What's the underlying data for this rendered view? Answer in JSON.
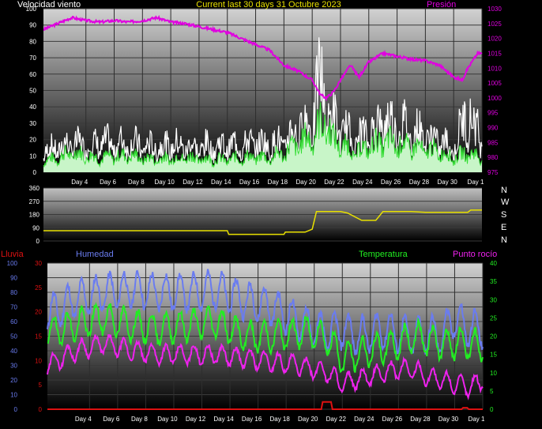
{
  "header": {
    "wind_label": "Velocidad viento",
    "title": "Current last 30 days 31 Octubre 2023",
    "pressure_label": "Presión"
  },
  "footer_labels": {
    "rain": "Lluvia",
    "humidity": "Humedad",
    "temperature": "Temperatura",
    "dewpoint": "Punto rocío"
  },
  "compass": [
    "N",
    "W",
    "S",
    "E",
    "N"
  ],
  "colors": {
    "pressure": "#e000e0",
    "gust": "#ffffff",
    "wind": "#33dd33",
    "wind_fill": "#c8f5c8",
    "direction": "#e8e000",
    "humidity": "#6a7cf0",
    "temperature": "#22ee22",
    "dewpoint": "#ee22ee",
    "rain": "#dd1111",
    "title": "#e8e000"
  },
  "chart_data": [
    {
      "type": "line",
      "title": "Current last 30 days 31 Octubre 2023",
      "x_ticks": [
        "Day 4",
        "Day 6",
        "Day 8",
        "Day 10",
        "Day 12",
        "Day 14",
        "Day 16",
        "Day 18",
        "Day 20",
        "Day 22",
        "Day 24",
        "Day 26",
        "Day 28",
        "Day 30",
        "Day 1"
      ],
      "x_tick_days": [
        3,
        5,
        7,
        9,
        11,
        13,
        15,
        17,
        19,
        21,
        23,
        25,
        27,
        29,
        31
      ],
      "xlim_days": [
        0,
        31
      ],
      "ylim_left": [
        0,
        100
      ],
      "y_ticks_left": [
        "0",
        "10",
        "20",
        "30",
        "40",
        "50",
        "60",
        "70",
        "80",
        "90",
        "100"
      ],
      "ylim_right": [
        975,
        1030
      ],
      "y_ticks_right": [
        "975",
        "980",
        "985",
        "990",
        "995",
        "1000",
        "1005",
        "1010",
        "1015",
        "1020",
        "1025",
        "1030"
      ],
      "series": [
        {
          "name": "Presión",
          "axis": "right",
          "points": [
            [
              0,
              1023
            ],
            [
              1,
              1025
            ],
            [
              2,
              1027
            ],
            [
              3,
              1026
            ],
            [
              4,
              1025.5
            ],
            [
              5,
              1026
            ],
            [
              6,
              1025.5
            ],
            [
              7,
              1026
            ],
            [
              8,
              1027
            ],
            [
              9,
              1025.5
            ],
            [
              10,
              1025
            ],
            [
              11,
              1024
            ],
            [
              12,
              1023
            ],
            [
              13,
              1022
            ],
            [
              14,
              1020
            ],
            [
              15,
              1018
            ],
            [
              16,
              1016
            ],
            [
              17,
              1011
            ],
            [
              18,
              1009
            ],
            [
              19,
              1006
            ],
            [
              19.6,
              1001
            ],
            [
              20,
              1000
            ],
            [
              20.5,
              1002
            ],
            [
              21,
              1006
            ],
            [
              21.7,
              1011
            ],
            [
              22.3,
              1007
            ],
            [
              23,
              1012
            ],
            [
              24,
              1015
            ],
            [
              25,
              1014
            ],
            [
              26,
              1013
            ],
            [
              27,
              1012.5
            ],
            [
              28,
              1011
            ],
            [
              29,
              1007
            ],
            [
              29.6,
              1006
            ],
            [
              30,
              1010
            ],
            [
              30.7,
              1015
            ],
            [
              31,
              1015
            ]
          ]
        },
        {
          "name": "Velocidad viento",
          "axis": "left",
          "points": [
            [
              0,
              8
            ],
            [
              1,
              10
            ],
            [
              2,
              14
            ],
            [
              3,
              12
            ],
            [
              4,
              10
            ],
            [
              5,
              11
            ],
            [
              6,
              12
            ],
            [
              7,
              10
            ],
            [
              8,
              9
            ],
            [
              9,
              10
            ],
            [
              10,
              11
            ],
            [
              11,
              10
            ],
            [
              12,
              9
            ],
            [
              13,
              9
            ],
            [
              14,
              10
            ],
            [
              15,
              11
            ],
            [
              16,
              10
            ],
            [
              17,
              14
            ],
            [
              18,
              20
            ],
            [
              19,
              25
            ],
            [
              20,
              38
            ],
            [
              20.5,
              22
            ],
            [
              21,
              20
            ],
            [
              22,
              14
            ],
            [
              23,
              18
            ],
            [
              24,
              22
            ],
            [
              25,
              20
            ],
            [
              26,
              18
            ],
            [
              27,
              16
            ],
            [
              28,
              15
            ],
            [
              29,
              10
            ],
            [
              30,
              14
            ],
            [
              31,
              10
            ]
          ]
        },
        {
          "name": "gust",
          "axis": "left",
          "points": [
            [
              0,
              20
            ],
            [
              1,
              24
            ],
            [
              2,
              27
            ],
            [
              3,
              25
            ],
            [
              4,
              28
            ],
            [
              5,
              27
            ],
            [
              6,
              28
            ],
            [
              7,
              25
            ],
            [
              8,
              24
            ],
            [
              9,
              27
            ],
            [
              10,
              25
            ],
            [
              11,
              24
            ],
            [
              12,
              25
            ],
            [
              13,
              26
            ],
            [
              14,
              27
            ],
            [
              15,
              28
            ],
            [
              16,
              26
            ],
            [
              17,
              30
            ],
            [
              18,
              42
            ],
            [
              19,
              48
            ],
            [
              19.6,
              90
            ],
            [
              20,
              55
            ],
            [
              21,
              42
            ],
            [
              22,
              30
            ],
            [
              23,
              38
            ],
            [
              24,
              50
            ],
            [
              25,
              45
            ],
            [
              26,
              40
            ],
            [
              27,
              35
            ],
            [
              28,
              30
            ],
            [
              29,
              22
            ],
            [
              30,
              60
            ],
            [
              31,
              30
            ]
          ]
        }
      ]
    },
    {
      "type": "line",
      "ylim": [
        0,
        360
      ],
      "y_ticks": [
        "0",
        "90",
        "180",
        "270",
        "360"
      ],
      "xlim_days": [
        0,
        31
      ],
      "series": [
        {
          "name": "direction",
          "points": [
            [
              0,
              70
            ],
            [
              13,
              70
            ],
            [
              13.1,
              45
            ],
            [
              17,
              45
            ],
            [
              17.1,
              60
            ],
            [
              18.5,
              60
            ],
            [
              19,
              80
            ],
            [
              19.3,
              200
            ],
            [
              21,
              200
            ],
            [
              21.5,
              190
            ],
            [
              22.5,
              140
            ],
            [
              23.5,
              140
            ],
            [
              24,
              200
            ],
            [
              26,
              200
            ],
            [
              27,
              195
            ],
            [
              30,
              195
            ],
            [
              30.2,
              210
            ],
            [
              31,
              210
            ]
          ]
        }
      ]
    },
    {
      "type": "line",
      "x_ticks": [
        "Day 4",
        "Day 6",
        "Day 8",
        "Day 10",
        "Day 12",
        "Day 14",
        "Day 16",
        "Day 18",
        "Day 20",
        "Day 22",
        "Day 24",
        "Day 26",
        "Day 28",
        "Day 30",
        "Day 1"
      ],
      "x_tick_days": [
        3,
        5,
        7,
        9,
        11,
        13,
        15,
        17,
        19,
        21,
        23,
        25,
        27,
        29,
        31
      ],
      "xlim_days": [
        0,
        31
      ],
      "ylim_humidity": [
        0,
        100
      ],
      "y_ticks_humidity": [
        "0",
        "10",
        "20",
        "30",
        "40",
        "50",
        "60",
        "70",
        "80",
        "90",
        "100"
      ],
      "ylim_rain": [
        0,
        30
      ],
      "y_ticks_rain": [
        "0",
        "5",
        "10",
        "15",
        "20",
        "25",
        "30"
      ],
      "ylim_temp": [
        0,
        40
      ],
      "y_ticks_temp": [
        "0",
        "5",
        "10",
        "15",
        "20",
        "25",
        "30",
        "35",
        "40"
      ],
      "series": [
        {
          "name": "Humedad",
          "axis": "humidity",
          "points": [
            [
              0,
              65
            ],
            [
              2,
              75
            ],
            [
              4,
              80
            ],
            [
              6,
              82
            ],
            [
              8,
              80
            ],
            [
              10,
              80
            ],
            [
              12,
              82
            ],
            [
              14,
              75
            ],
            [
              16,
              70
            ],
            [
              18,
              60
            ],
            [
              19,
              55
            ],
            [
              20,
              52
            ],
            [
              21,
              55
            ],
            [
              22,
              50
            ],
            [
              23,
              52
            ],
            [
              24,
              55
            ],
            [
              25,
              52
            ],
            [
              26,
              50
            ],
            [
              27,
              52
            ],
            [
              28,
              50
            ],
            [
              29,
              62
            ],
            [
              30,
              55
            ],
            [
              31,
              55
            ]
          ]
        },
        {
          "name": "Temperatura",
          "axis": "temp",
          "points": [
            [
              0,
              21
            ],
            [
              2,
              23
            ],
            [
              4,
              25
            ],
            [
              6,
              23
            ],
            [
              8,
              22
            ],
            [
              10,
              23
            ],
            [
              12,
              24
            ],
            [
              14,
              20
            ],
            [
              16,
              20
            ],
            [
              18,
              21
            ],
            [
              19,
              21
            ],
            [
              20,
              19
            ],
            [
              21,
              14
            ],
            [
              22,
              15
            ],
            [
              23,
              16
            ],
            [
              24,
              17
            ],
            [
              25,
              18
            ],
            [
              26,
              20
            ],
            [
              27,
              19
            ],
            [
              28,
              18
            ],
            [
              29,
              18
            ],
            [
              30,
              18
            ],
            [
              31,
              17
            ]
          ]
        },
        {
          "name": "Punto rocío",
          "axis": "temp",
          "points": [
            [
              0,
              12
            ],
            [
              2,
              16
            ],
            [
              4,
              18
            ],
            [
              6,
              16
            ],
            [
              8,
              15
            ],
            [
              10,
              15
            ],
            [
              12,
              15
            ],
            [
              14,
              14
            ],
            [
              16,
              13
            ],
            [
              18,
              12
            ],
            [
              19,
              11
            ],
            [
              20,
              10
            ],
            [
              21,
              7
            ],
            [
              22,
              8
            ],
            [
              23,
              9
            ],
            [
              24,
              10
            ],
            [
              25,
              11
            ],
            [
              26,
              11
            ],
            [
              27,
              9
            ],
            [
              28,
              8
            ],
            [
              29,
              7
            ],
            [
              30,
              6
            ],
            [
              31,
              8
            ]
          ]
        },
        {
          "name": "Lluvia",
          "axis": "rain",
          "points": [
            [
              0,
              0
            ],
            [
              19.5,
              0
            ],
            [
              19.6,
              1.5
            ],
            [
              20.2,
              1.5
            ],
            [
              20.3,
              0
            ],
            [
              29.5,
              0
            ],
            [
              29.6,
              0.3
            ],
            [
              29.9,
              0.3
            ],
            [
              30,
              0
            ],
            [
              31,
              0
            ]
          ]
        }
      ]
    }
  ]
}
